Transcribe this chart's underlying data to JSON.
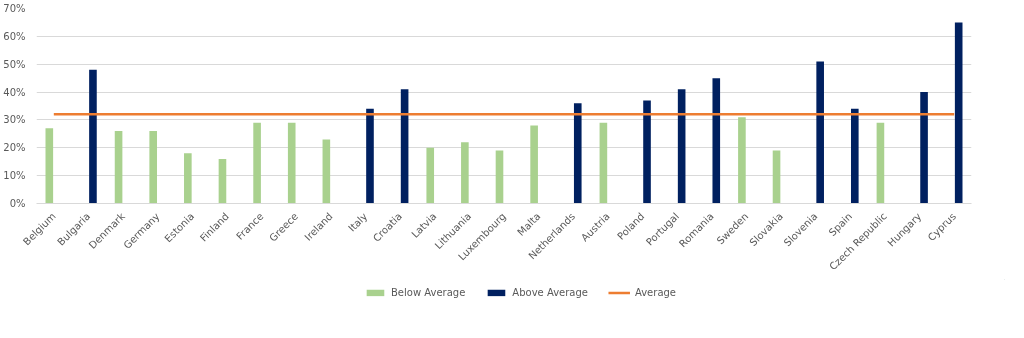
{
  "chart_data": {
    "type": "bar",
    "categories": [
      "Belgium",
      "Bulgaria",
      "Denmark",
      "Germany",
      "Estonia",
      "Finland",
      "France",
      "Greece",
      "Ireland",
      "Italy",
      "Croatia",
      "Latvia",
      "Lithuania",
      "Luxembourg",
      "Malta",
      "Netherlands",
      "Austria",
      "Poland",
      "Portugal",
      "Romania",
      "Sweden",
      "Slovakia",
      "Slovenia",
      "Spain",
      "Czech Republic",
      "Hungary",
      "Cyprus"
    ],
    "series": [
      {
        "name": "Below Average",
        "color": "#a9d18e",
        "values": [
          27,
          null,
          26,
          26,
          18,
          16,
          29,
          29,
          23,
          null,
          null,
          20,
          22,
          19,
          28,
          null,
          29,
          null,
          null,
          null,
          31,
          19,
          null,
          null,
          29,
          null,
          null
        ]
      },
      {
        "name": "Above Average",
        "color": "#002060",
        "values": [
          null,
          48,
          null,
          null,
          null,
          null,
          null,
          null,
          null,
          34,
          41,
          null,
          null,
          null,
          null,
          36,
          null,
          37,
          41,
          45,
          null,
          null,
          51,
          34,
          null,
          40,
          65
        ]
      },
      {
        "name": "Average",
        "type": "line",
        "color": "#ed7d31",
        "values": [
          32,
          32,
          32,
          32,
          32,
          32,
          32,
          32,
          32,
          32,
          32,
          32,
          32,
          32,
          32,
          32,
          32,
          32,
          32,
          32,
          32,
          32,
          32,
          32,
          32,
          32,
          32
        ]
      }
    ],
    "ylim": [
      0,
      70
    ],
    "yticks": [
      {
        "value": 0,
        "label": "0%"
      },
      {
        "value": 10,
        "label": "10%"
      },
      {
        "value": 20,
        "label": "20%"
      },
      {
        "value": 30,
        "label": "30%"
      },
      {
        "value": 40,
        "label": "40%"
      },
      {
        "value": 50,
        "label": "50%"
      },
      {
        "value": 60,
        "label": "60%"
      },
      {
        "value": 70,
        "label": "70%"
      }
    ],
    "grid": "y",
    "legend": "bottom"
  }
}
